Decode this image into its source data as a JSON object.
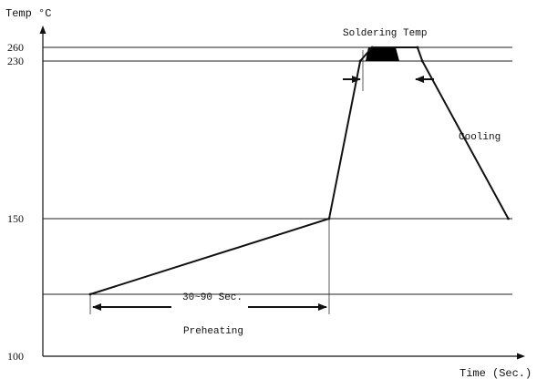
{
  "chart_data": {
    "type": "line",
    "title": "",
    "ylabel": "Temp °C",
    "xlabel": "Time (Sec.)",
    "y_ticks": [
      260,
      230,
      150,
      100
    ],
    "y_tick_labels": [
      "260",
      "230",
      "150",
      "100"
    ],
    "series": [
      {
        "points": [
          {
            "t": 0,
            "temp": 125
          },
          {
            "t": 1,
            "temp": 150
          },
          {
            "t": 1.13,
            "temp": 230
          },
          {
            "t": 1.18,
            "temp": 260
          },
          {
            "t": 1.37,
            "temp": 260
          },
          {
            "t": 1.39,
            "temp": 230
          },
          {
            "t": 1.75,
            "temp": 150
          }
        ]
      }
    ],
    "preheat_start_temp": 125,
    "annotations": {
      "soldering_temp": "Soldering Temp",
      "cooling": "Cooling",
      "preheat_duration": "30~90 Sec.",
      "preheating": "Preheating"
    },
    "colors": {
      "line": "#111111",
      "grid": "#222222",
      "fill": "#000000"
    }
  }
}
